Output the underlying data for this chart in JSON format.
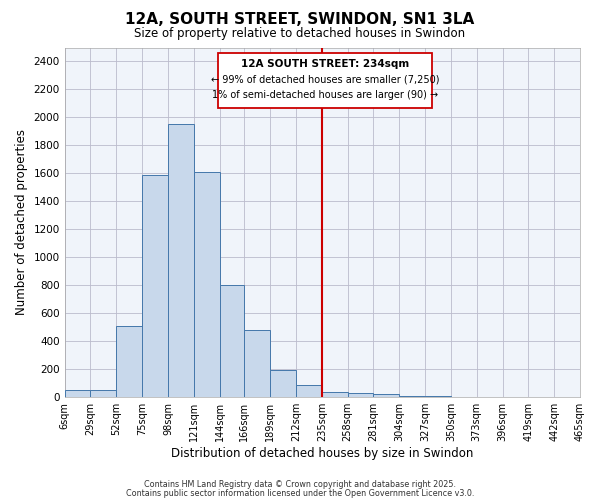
{
  "title": "12A, SOUTH STREET, SWINDON, SN1 3LA",
  "subtitle": "Size of property relative to detached houses in Swindon",
  "xlabel": "Distribution of detached houses by size in Swindon",
  "ylabel": "Number of detached properties",
  "bar_color": "#c8d8eb",
  "bar_edge_color": "#4477aa",
  "background_color": "#ffffff",
  "plot_bg_color": "#f0f4fa",
  "grid_color": "#bbbbcc",
  "vline_value": 235,
  "vline_color": "#cc0000",
  "annotation_title": "12A SOUTH STREET: 234sqm",
  "annotation_line1": "← 99% of detached houses are smaller (7,250)",
  "annotation_line2": "1% of semi-detached houses are larger (90) →",
  "footer1": "Contains HM Land Registry data © Crown copyright and database right 2025.",
  "footer2": "Contains public sector information licensed under the Open Government Licence v3.0.",
  "bin_edges": [
    6,
    29,
    52,
    75,
    98,
    121,
    144,
    166,
    189,
    212,
    235,
    258,
    281,
    304,
    327,
    350,
    373,
    396,
    419,
    442,
    465
  ],
  "bin_labels": [
    "6sqm",
    "29sqm",
    "52sqm",
    "75sqm",
    "98sqm",
    "121sqm",
    "144sqm",
    "166sqm",
    "189sqm",
    "212sqm",
    "235sqm",
    "258sqm",
    "281sqm",
    "304sqm",
    "327sqm",
    "350sqm",
    "373sqm",
    "396sqm",
    "419sqm",
    "442sqm",
    "465sqm"
  ],
  "bar_heights": [
    50,
    50,
    510,
    1590,
    1950,
    1610,
    800,
    480,
    195,
    90,
    35,
    30,
    20,
    10,
    10,
    5,
    5,
    5,
    0,
    5,
    0
  ],
  "ylim": [
    0,
    2500
  ],
  "yticks": [
    0,
    200,
    400,
    600,
    800,
    1000,
    1200,
    1400,
    1600,
    1800,
    2000,
    2200,
    2400
  ],
  "xlim_left": 6,
  "xlim_right": 465
}
